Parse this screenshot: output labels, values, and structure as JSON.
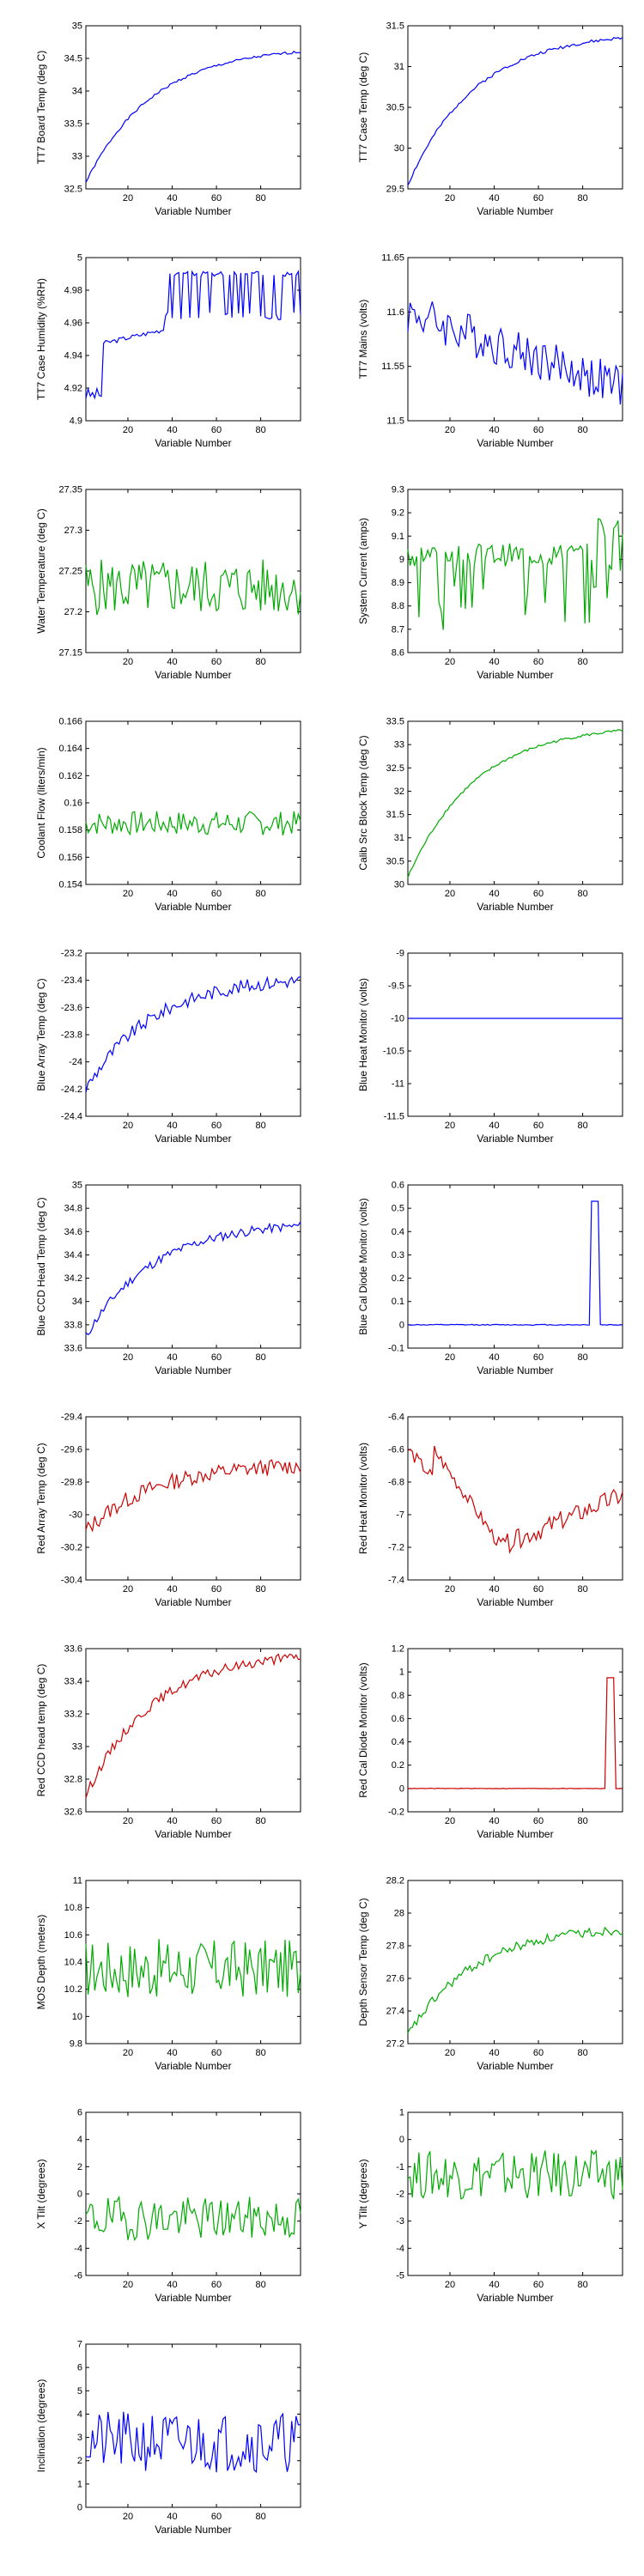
{
  "figure": {
    "panel_count": 21,
    "columns": 2,
    "x_axis": {
      "label": "Variable Number",
      "range": [
        1,
        98
      ],
      "ticks": [
        20,
        40,
        60,
        80
      ]
    }
  },
  "chart_data": [
    {
      "type": "line",
      "ylabel": "TT7 Board Temp (deg C)",
      "xlabel": "Variable Number",
      "color": "#0000ff",
      "ylim": [
        32.5,
        35
      ],
      "yticks": [
        "32.5",
        "33",
        "33.5",
        "34",
        "34.5",
        "35"
      ],
      "profile": "rise",
      "y_start": 32.6,
      "y_end": 34.6,
      "noise": 0.02,
      "seed": 1,
      "x_range": [
        1,
        98
      ],
      "xticks": [
        "20",
        "40",
        "60",
        "80"
      ]
    },
    {
      "type": "line",
      "ylabel": "TT7 Case Temp (deg C)",
      "xlabel": "Variable Number",
      "color": "#0000ff",
      "ylim": [
        29.5,
        31.5
      ],
      "yticks": [
        "29.5",
        "30",
        "30.5",
        "31",
        "31.5"
      ],
      "profile": "rise",
      "y_start": 29.55,
      "y_end": 31.35,
      "noise": 0.02,
      "seed": 2,
      "x_range": [
        1,
        98
      ],
      "xticks": [
        "20",
        "40",
        "60",
        "80"
      ]
    },
    {
      "type": "line",
      "ylabel": "TT7 Case Humidity (%RH)",
      "xlabel": "Variable Number",
      "color": "#0000ff",
      "ylim": [
        4.9,
        5.0
      ],
      "yticks": [
        "4.9",
        "4.92",
        "4.94",
        "4.96",
        "4.98",
        "5"
      ],
      "profile": "humidity",
      "seed": 3,
      "x_range": [
        1,
        98
      ],
      "xticks": [
        "20",
        "40",
        "60",
        "80"
      ]
    },
    {
      "type": "line",
      "ylabel": "TT7 Mains  (volts)",
      "xlabel": "Variable Number",
      "color": "#0000ff",
      "ylim": [
        11.5,
        11.65
      ],
      "yticks": [
        "11.5",
        "11.55",
        "11.6",
        "11.65"
      ],
      "profile": "decline",
      "y_start": 11.6,
      "y_end": 11.53,
      "noise": 0.02,
      "seed": 4,
      "x_range": [
        1,
        98
      ],
      "xticks": [
        "20",
        "40",
        "60",
        "80"
      ]
    },
    {
      "type": "line",
      "ylabel": "Water Temperature (deg C)",
      "xlabel": "Variable Number",
      "color": "#00aa00",
      "ylim": [
        27.15,
        27.35
      ],
      "yticks": [
        "27.15",
        "27.2",
        "27.25",
        "27.3",
        "27.35"
      ],
      "profile": "noise",
      "y_mean": 27.23,
      "noise": 0.035,
      "seed": 5,
      "x_range": [
        1,
        98
      ],
      "xticks": [
        "20",
        "40",
        "60",
        "80"
      ]
    },
    {
      "type": "line",
      "ylabel": "System Current (amps)",
      "xlabel": "Variable Number",
      "color": "#00aa00",
      "ylim": [
        8.6,
        9.3
      ],
      "yticks": [
        "8.6",
        "8.7",
        "8.8",
        "8.9",
        "9",
        "9.1",
        "9.2",
        "9.3"
      ],
      "profile": "dips",
      "y_mean": 9.02,
      "noise": 0.05,
      "dip": 0.3,
      "seed": 6,
      "x_range": [
        1,
        98
      ],
      "xticks": [
        "20",
        "40",
        "60",
        "80"
      ]
    },
    {
      "type": "line",
      "ylabel": "Coolant Flow (liters/min)",
      "xlabel": "Variable Number",
      "color": "#00aa00",
      "ylim": [
        0.154,
        0.166
      ],
      "yticks": [
        "0.154",
        "0.156",
        "0.158",
        "0.16",
        "0.162",
        "0.164",
        "0.166"
      ],
      "profile": "noise",
      "y_mean": 0.1585,
      "noise": 0.0009,
      "seed": 7,
      "x_range": [
        1,
        98
      ],
      "xticks": [
        "20",
        "40",
        "60",
        "80"
      ]
    },
    {
      "type": "line",
      "ylabel": "Calib Src Block Temp (deg C)",
      "xlabel": "Variable Number",
      "color": "#00aa00",
      "ylim": [
        30,
        33.5
      ],
      "yticks": [
        "30",
        "30.5",
        "31",
        "31.5",
        "32",
        "32.5",
        "33",
        "33.5"
      ],
      "profile": "rise",
      "y_start": 30.15,
      "y_end": 33.3,
      "noise": 0.03,
      "seed": 8,
      "x_range": [
        1,
        98
      ],
      "xticks": [
        "20",
        "40",
        "60",
        "80"
      ]
    },
    {
      "type": "line",
      "ylabel": "Blue Array Temp (deg C)",
      "xlabel": "Variable Number",
      "color": "#0000ff",
      "ylim": [
        -24.4,
        -23.2
      ],
      "yticks": [
        "-24.4",
        "-24.2",
        "-24",
        "-23.8",
        "-23.6",
        "-23.4",
        "-23.2"
      ],
      "profile": "rise",
      "y_start": -24.2,
      "y_end": -23.4,
      "noise": 0.05,
      "seed": 9,
      "x_range": [
        1,
        98
      ],
      "xticks": [
        "20",
        "40",
        "60",
        "80"
      ]
    },
    {
      "type": "line",
      "ylabel": "Blue Heat Monitor (volts)",
      "xlabel": "Variable Number",
      "color": "#0000ff",
      "ylim": [
        -11.5,
        -9
      ],
      "yticks": [
        "-11.5",
        "-11",
        "-10.5",
        "-10",
        "-9.5",
        "-9"
      ],
      "profile": "flat",
      "y_mean": -10,
      "seed": 10,
      "x_range": [
        1,
        98
      ],
      "xticks": [
        "20",
        "40",
        "60",
        "80"
      ]
    },
    {
      "type": "line",
      "ylabel": "Blue CCD Head Temp (deg C)",
      "xlabel": "Variable Number",
      "color": "#0000ff",
      "ylim": [
        33.6,
        35
      ],
      "yticks": [
        "33.6",
        "33.8",
        "34",
        "34.2",
        "34.4",
        "34.6",
        "34.8",
        "35"
      ],
      "profile": "rise",
      "y_start": 33.7,
      "y_end": 34.65,
      "noise": 0.04,
      "seed": 11,
      "x_range": [
        1,
        98
      ],
      "xticks": [
        "20",
        "40",
        "60",
        "80"
      ]
    },
    {
      "type": "line",
      "ylabel": "Blue Cal Diode Monitor (volts)",
      "xlabel": "Variable Number",
      "color": "#0000ff",
      "ylim": [
        -0.1,
        0.6
      ],
      "yticks": [
        "-0.1",
        "0",
        "0.1",
        "0.2",
        "0.3",
        "0.4",
        "0.5",
        "0.6"
      ],
      "profile": "spike",
      "y_mean": 0,
      "spike_x": [
        84,
        87
      ],
      "spike_y": 0.53,
      "seed": 12,
      "x_range": [
        1,
        98
      ],
      "xticks": [
        "20",
        "40",
        "60",
        "80"
      ]
    },
    {
      "type": "line",
      "ylabel": "Red Array Temp (deg C)",
      "xlabel": "Variable Number",
      "color": "#cc0000",
      "ylim": [
        -30.4,
        -29.4
      ],
      "yticks": [
        "-30.4",
        "-30.2",
        "-30",
        "-29.8",
        "-29.6",
        "-29.4"
      ],
      "profile": "rise",
      "y_start": -30.1,
      "y_end": -29.7,
      "noise": 0.05,
      "seed": 13,
      "x_range": [
        1,
        98
      ],
      "xticks": [
        "20",
        "40",
        "60",
        "80"
      ]
    },
    {
      "type": "line",
      "ylabel": "Red Heat Monitor (volts)",
      "xlabel": "Variable Number",
      "color": "#cc0000",
      "ylim": [
        -7.4,
        -6.4
      ],
      "yticks": [
        "-7.4",
        "-7.2",
        "-7",
        "-6.8",
        "-6.6",
        "-6.4"
      ],
      "profile": "hump",
      "seed": 14,
      "x_range": [
        1,
        98
      ],
      "xticks": [
        "20",
        "40",
        "60",
        "80"
      ]
    },
    {
      "type": "line",
      "ylabel": "Red CCD head temp (deg C)",
      "xlabel": "Variable Number",
      "color": "#cc0000",
      "ylim": [
        32.6,
        33.6
      ],
      "yticks": [
        "32.6",
        "32.8",
        "33",
        "33.2",
        "33.4",
        "33.6"
      ],
      "profile": "rise",
      "y_start": 32.7,
      "y_end": 33.55,
      "noise": 0.03,
      "seed": 15,
      "x_range": [
        1,
        98
      ],
      "xticks": [
        "20",
        "40",
        "60",
        "80"
      ]
    },
    {
      "type": "line",
      "ylabel": "Red Cal Diode Monitor (volts)",
      "xlabel": "Variable Number",
      "color": "#cc0000",
      "ylim": [
        -0.2,
        1.2
      ],
      "yticks": [
        "-0.2",
        "0",
        "0.2",
        "0.4",
        "0.6",
        "0.8",
        "1",
        "1.2"
      ],
      "profile": "spike",
      "y_mean": 0,
      "spike_x": [
        91,
        94
      ],
      "spike_y": 0.95,
      "seed": 16,
      "x_range": [
        1,
        98
      ],
      "xticks": [
        "20",
        "40",
        "60",
        "80"
      ]
    },
    {
      "type": "line",
      "ylabel": "MOS Depth  (meters)",
      "xlabel": "Variable Number",
      "color": "#00aa00",
      "ylim": [
        9.8,
        11
      ],
      "yticks": [
        "9.8",
        "10",
        "10.2",
        "10.4",
        "10.6",
        "10.8",
        "11"
      ],
      "profile": "noise",
      "y_mean": 10.35,
      "noise": 0.22,
      "seed": 17,
      "x_range": [
        1,
        98
      ],
      "xticks": [
        "20",
        "40",
        "60",
        "80"
      ]
    },
    {
      "type": "line",
      "ylabel": "Depth Sensor Temp (deg C)",
      "xlabel": "Variable Number",
      "color": "#00aa00",
      "ylim": [
        27.2,
        28.2
      ],
      "yticks": [
        "27.2",
        "27.4",
        "27.6",
        "27.8",
        "28",
        "28.2"
      ],
      "profile": "rise",
      "y_start": 27.25,
      "y_end": 27.9,
      "noise": 0.03,
      "seed": 18,
      "x_range": [
        1,
        98
      ],
      "xticks": [
        "20",
        "40",
        "60",
        "80"
      ]
    },
    {
      "type": "line",
      "ylabel": "X Tilt  (degrees)",
      "xlabel": "Variable Number",
      "color": "#00aa00",
      "ylim": [
        -6,
        6
      ],
      "yticks": [
        "-6",
        "-4",
        "-2",
        "0",
        "2",
        "4",
        "6"
      ],
      "profile": "noise",
      "y_mean": -1.8,
      "noise": 1.6,
      "seed": 19,
      "x_range": [
        1,
        98
      ],
      "xticks": [
        "20",
        "40",
        "60",
        "80"
      ]
    },
    {
      "type": "line",
      "ylabel": "Y Tilt  (degrees)",
      "xlabel": "Variable Number",
      "color": "#00aa00",
      "ylim": [
        -5,
        1
      ],
      "yticks": [
        "-5",
        "-4",
        "-3",
        "-2",
        "-1",
        "0",
        "1"
      ],
      "profile": "noise",
      "y_mean": -1.3,
      "noise": 0.9,
      "seed": 20,
      "x_range": [
        1,
        98
      ],
      "xticks": [
        "20",
        "40",
        "60",
        "80"
      ]
    },
    {
      "type": "line",
      "ylabel": "Inclination  (degrees)",
      "xlabel": "Variable Number",
      "color": "#0000ff",
      "ylim": [
        0,
        7
      ],
      "yticks": [
        "0",
        "1",
        "2",
        "3",
        "4",
        "5",
        "6",
        "7"
      ],
      "profile": "noise",
      "y_mean": 2.8,
      "noise": 1.3,
      "seed": 21,
      "x_range": [
        1,
        98
      ],
      "xticks": [
        "20",
        "40",
        "60",
        "80"
      ]
    }
  ]
}
